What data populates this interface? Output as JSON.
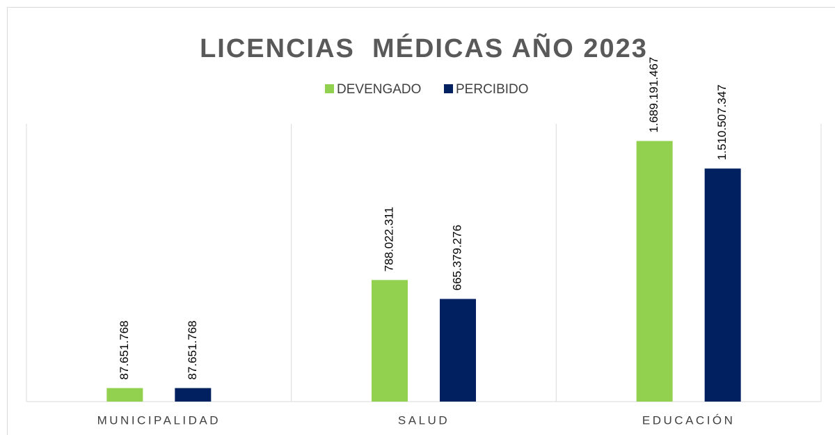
{
  "chart_data": {
    "type": "bar",
    "title": "LICENCIAS  MÉDICAS AÑO 2023",
    "categories": [
      "MUNICIPALIDAD",
      "SALUD",
      "EDUCACIÓN"
    ],
    "series": [
      {
        "name": "DEVENGADO",
        "color": "#92d050",
        "values": [
          87651768,
          788022311,
          1689191467
        ],
        "value_labels": [
          "87.651.768",
          "788.022.311",
          "1.689.191.467"
        ]
      },
      {
        "name": "PERCIBIDO",
        "color": "#002060",
        "values": [
          87651768,
          665379276,
          1510507347
        ],
        "value_labels": [
          "87.651.768",
          "665.379.276",
          "1.510.507.347"
        ]
      }
    ],
    "ylim": [
      0,
      1800000000
    ],
    "legend": "top"
  }
}
